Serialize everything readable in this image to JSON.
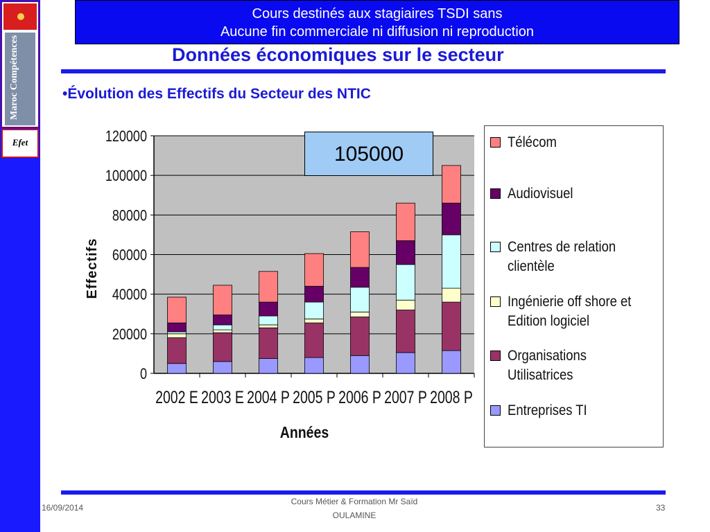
{
  "banner": {
    "line1": "Cours destinés aux stagiaires TSDI sans",
    "line2": "Aucune fin commerciale ni diffusion ni reproduction"
  },
  "logo": {
    "vertical_text": "Maroc Compétences",
    "efet": "Efet"
  },
  "page": {
    "title": "Données économiques sur le secteur",
    "subtitle": "•Évolution des Effectifs du Secteur des NTIC"
  },
  "callout": "105000",
  "footer": {
    "date": "16/09/2014",
    "center_line1": "Cours Métier & Formation  Mr Saïd",
    "center_line2": "OULAMINE",
    "page_number": "33"
  },
  "colors": {
    "sidebar": "#1a1aff",
    "banner": "#0a0af0",
    "title": "#1a1ad6",
    "plot_bg": "#c0c0c0"
  },
  "chart_data": {
    "type": "bar",
    "stacked": true,
    "categories": [
      "2002 E",
      "2003 E",
      "2004 P",
      "2005 P",
      "2006 P",
      "2007 P",
      "2008 P"
    ],
    "xlabel": "Années",
    "ylabel": "Effectifs",
    "ylim": [
      0,
      120000
    ],
    "yticks": [
      0,
      20000,
      40000,
      60000,
      80000,
      100000,
      120000
    ],
    "grid": true,
    "legend_position": "right",
    "series": [
      {
        "name": "Entreprises TI",
        "color": "#9999ff",
        "values": [
          5000,
          6000,
          7500,
          8000,
          9000,
          10500,
          11500
        ]
      },
      {
        "name": "Organisations Utilisatrices",
        "color": "#993366",
        "values": [
          13000,
          14500,
          15500,
          17500,
          19500,
          21500,
          24500
        ]
      },
      {
        "name": "Ingénierie off shore et Edition logiciel",
        "color": "#ffffcc",
        "values": [
          2000,
          1500,
          1500,
          2000,
          2500,
          5000,
          7000
        ]
      },
      {
        "name": "Centres de relation clientèle",
        "color": "#ccffff",
        "values": [
          1000,
          2500,
          4500,
          8500,
          12500,
          18000,
          27000
        ]
      },
      {
        "name": "Audiovisuel",
        "color": "#660066",
        "values": [
          4500,
          5000,
          7000,
          8000,
          10000,
          12000,
          16000
        ]
      },
      {
        "name": "Télécom",
        "color": "#ff8080",
        "values": [
          13000,
          15000,
          15500,
          16500,
          18000,
          19000,
          19000
        ]
      }
    ]
  }
}
